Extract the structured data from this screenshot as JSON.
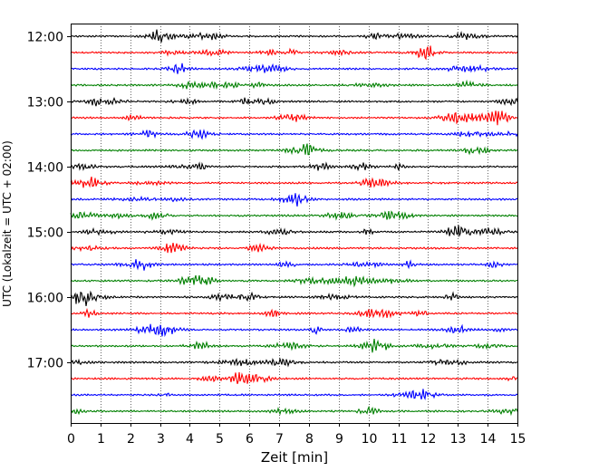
{
  "chart_data": {
    "type": "line",
    "title": "",
    "xlabel": "Zeit  [min]",
    "ylabel": "UTC (Lokalzeit = UTC + 02:00)",
    "xlim": [
      0,
      15
    ],
    "x_ticks": [
      "0",
      "1",
      "2",
      "3",
      "4",
      "5",
      "6",
      "7",
      "8",
      "9",
      "10",
      "11",
      "12",
      "13",
      "14",
      "15"
    ],
    "y_ticks": [
      "12:00",
      "13:00",
      "14:00",
      "15:00",
      "16:00",
      "17:00"
    ],
    "grid": "vertical dotted at each minute",
    "trace_interval_min": 15,
    "trace_colors": [
      "#000000",
      "#ff0000",
      "#0000ff",
      "#008000"
    ],
    "traces": [
      {
        "start": "12:00",
        "color": "#000000"
      },
      {
        "start": "12:15",
        "color": "#ff0000"
      },
      {
        "start": "12:30",
        "color": "#0000ff"
      },
      {
        "start": "12:45",
        "color": "#008000"
      },
      {
        "start": "13:00",
        "color": "#000000"
      },
      {
        "start": "13:15",
        "color": "#ff0000"
      },
      {
        "start": "13:30",
        "color": "#0000ff"
      },
      {
        "start": "13:45",
        "color": "#008000"
      },
      {
        "start": "14:00",
        "color": "#000000"
      },
      {
        "start": "14:15",
        "color": "#ff0000"
      },
      {
        "start": "14:30",
        "color": "#0000ff"
      },
      {
        "start": "14:45",
        "color": "#008000"
      },
      {
        "start": "15:00",
        "color": "#000000"
      },
      {
        "start": "15:15",
        "color": "#ff0000"
      },
      {
        "start": "15:30",
        "color": "#0000ff"
      },
      {
        "start": "15:45",
        "color": "#008000"
      },
      {
        "start": "16:00",
        "color": "#000000"
      },
      {
        "start": "16:15",
        "color": "#ff0000"
      },
      {
        "start": "16:30",
        "color": "#0000ff"
      },
      {
        "start": "16:45",
        "color": "#008000"
      },
      {
        "start": "17:00",
        "color": "#000000"
      },
      {
        "start": "17:15",
        "color": "#ff0000"
      },
      {
        "start": "17:30",
        "color": "#0000ff"
      },
      {
        "start": "17:45",
        "color": "#008000"
      }
    ]
  }
}
